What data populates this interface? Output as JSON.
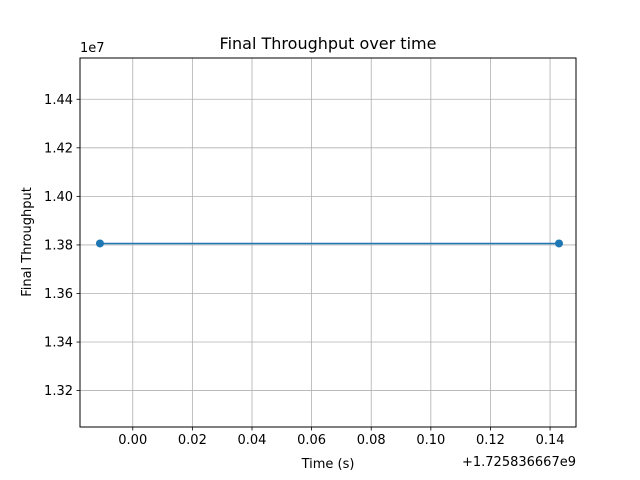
{
  "chart_data": {
    "type": "line",
    "title": "Final Throughput over time",
    "xlabel": "Time (s)",
    "ylabel": "Final Throughput",
    "x_offset_label": "+1.725836667e9",
    "y_scale_label": "1e7",
    "grid": true,
    "xlim": [
      -0.0177,
      0.1487
    ],
    "ylim": [
      13050000,
      14570000
    ],
    "x_ticks": [
      0.0,
      0.02,
      0.04,
      0.06,
      0.08,
      0.1,
      0.12,
      0.14
    ],
    "x_tick_labels": [
      "0.00",
      "0.02",
      "0.04",
      "0.06",
      "0.08",
      "0.10",
      "0.12",
      "0.14"
    ],
    "y_ticks": [
      13200000,
      13400000,
      13600000,
      13800000,
      14000000,
      14200000,
      14400000
    ],
    "y_tick_labels": [
      "1.32",
      "1.34",
      "1.36",
      "1.38",
      "1.40",
      "1.42",
      "1.44"
    ],
    "series": [
      {
        "color": "#1f77b4",
        "marker": "circle",
        "x": [
          -0.011,
          0.143
        ],
        "y": [
          13806000,
          13806000
        ]
      }
    ]
  }
}
